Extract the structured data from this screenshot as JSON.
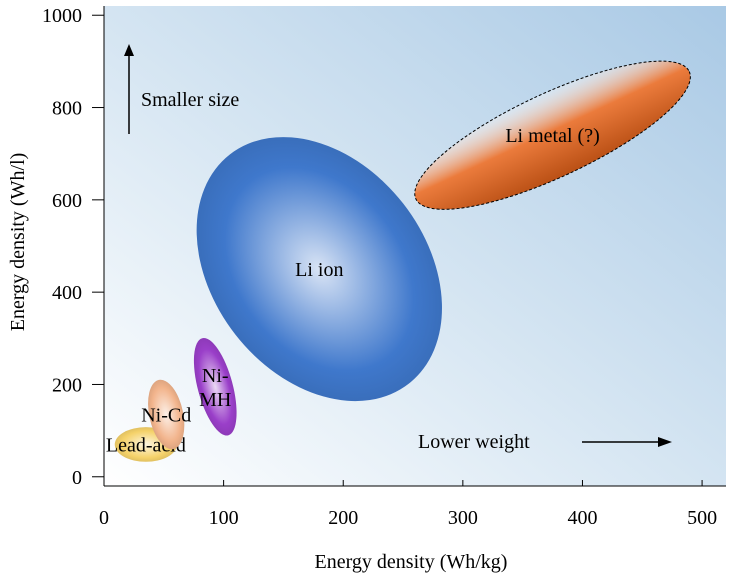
{
  "chart_data": {
    "type": "scatter",
    "title": "",
    "xlabel": "Energy density (Wh/kg)",
    "ylabel": "Energy density (Wh/l)",
    "xlim": [
      0,
      520
    ],
    "ylim": [
      -20,
      1020
    ],
    "x_ticks": [
      0,
      100,
      200,
      300,
      400,
      500
    ],
    "y_ticks": [
      0,
      200,
      400,
      600,
      800,
      1000
    ],
    "x_tick_labels": [
      "0",
      "100",
      "200",
      "300",
      "400",
      "500"
    ],
    "y_tick_labels": [
      "0",
      "200",
      "400",
      "600",
      "800",
      "1000"
    ],
    "grid": false,
    "legend": "none",
    "colors": {
      "background_light": "#ffffff",
      "background_dark": "#a9c9e5",
      "lead_acid": "#f5d26a",
      "ni_cd": "#f2b48c",
      "ni_mh": "#9a3fc9",
      "li_ion": "#3f78cc",
      "li_metal": "#e8641a"
    },
    "regions": [
      {
        "key": "lead_acid",
        "label": "Lead-acid",
        "center": [
          35,
          70
        ],
        "x_min": 10,
        "x_max": 62,
        "y_min": 35,
        "y_max": 110,
        "angle": 0,
        "dashed": false
      },
      {
        "key": "ni_cd",
        "label": "Ni-Cd",
        "center": [
          52,
          135
        ],
        "x_min": 38,
        "x_max": 78,
        "y_min": 50,
        "y_max": 215,
        "angle": -12,
        "dashed": false
      },
      {
        "key": "ni_mh",
        "label": "Ni-\nMH",
        "center": [
          93,
          195
        ],
        "x_min": 78,
        "x_max": 128,
        "y_min": 80,
        "y_max": 310,
        "angle": -15,
        "dashed": false
      },
      {
        "key": "li_ion",
        "label": "Li ion",
        "center": [
          180,
          450
        ],
        "x_min": 120,
        "x_max": 298,
        "y_min": 140,
        "y_max": 770,
        "angle": -38,
        "dashed": false
      },
      {
        "key": "li_metal",
        "label": "Li metal (?)",
        "center": [
          375,
          740
        ],
        "x_min": 270,
        "x_max": 528,
        "y_min": 560,
        "y_max": 1000,
        "angle": -25,
        "dashed": true
      }
    ],
    "annotations": [
      {
        "key": "smaller_size",
        "text": "Smaller size",
        "arrow": "up"
      },
      {
        "key": "lower_weight",
        "text": "Lower weight",
        "arrow": "right"
      }
    ]
  }
}
